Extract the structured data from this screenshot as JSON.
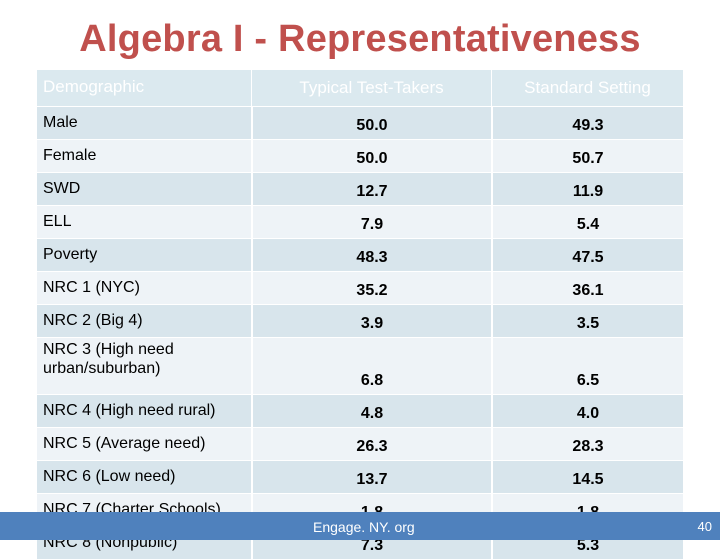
{
  "slide": {
    "title": "Algebra I - Representativeness"
  },
  "table": {
    "headers": [
      "Demographic",
      "Typical Test-Takers",
      "Standard Setting"
    ],
    "rows": [
      {
        "label": "Male",
        "typical": "50.0",
        "standard": "49.3"
      },
      {
        "label": "Female",
        "typical": "50.0",
        "standard": "50.7"
      },
      {
        "label": "SWD",
        "typical": "12.7",
        "standard": "11.9"
      },
      {
        "label": "ELL",
        "typical": "7.9",
        "standard": "5.4"
      },
      {
        "label": "Poverty",
        "typical": "48.3",
        "standard": "47.5"
      },
      {
        "label": "NRC 1 (NYC)",
        "typical": "35.2",
        "standard": "36.1"
      },
      {
        "label": "NRC 2 (Big 4)",
        "typical": "3.9",
        "standard": "3.5"
      },
      {
        "label": "NRC 3 (High need urban/suburban)",
        "typical": "6.8",
        "standard": "6.5"
      },
      {
        "label": "NRC 4 (High need rural)",
        "typical": "4.8",
        "standard": "4.0"
      },
      {
        "label": "NRC 5 (Average need)",
        "typical": "26.3",
        "standard": "28.3"
      },
      {
        "label": "NRC 6 (Low need)",
        "typical": "13.7",
        "standard": "14.5"
      },
      {
        "label": "NRC 7 (Charter Schools)",
        "typical": "1.8",
        "standard": "1.8"
      },
      {
        "label": "NRC 8 (Nonpublic)",
        "typical": "7.3",
        "standard": "5.3"
      }
    ]
  },
  "footer": {
    "source": "Engage. NY. org",
    "page_number": "40"
  },
  "colors": {
    "title": "#c0504d",
    "header_fill": "#dbe9ef",
    "row_fill_dark": "#d8e5ec",
    "row_fill_light": "#eef3f7",
    "footer_bar": "#4f81bd"
  }
}
